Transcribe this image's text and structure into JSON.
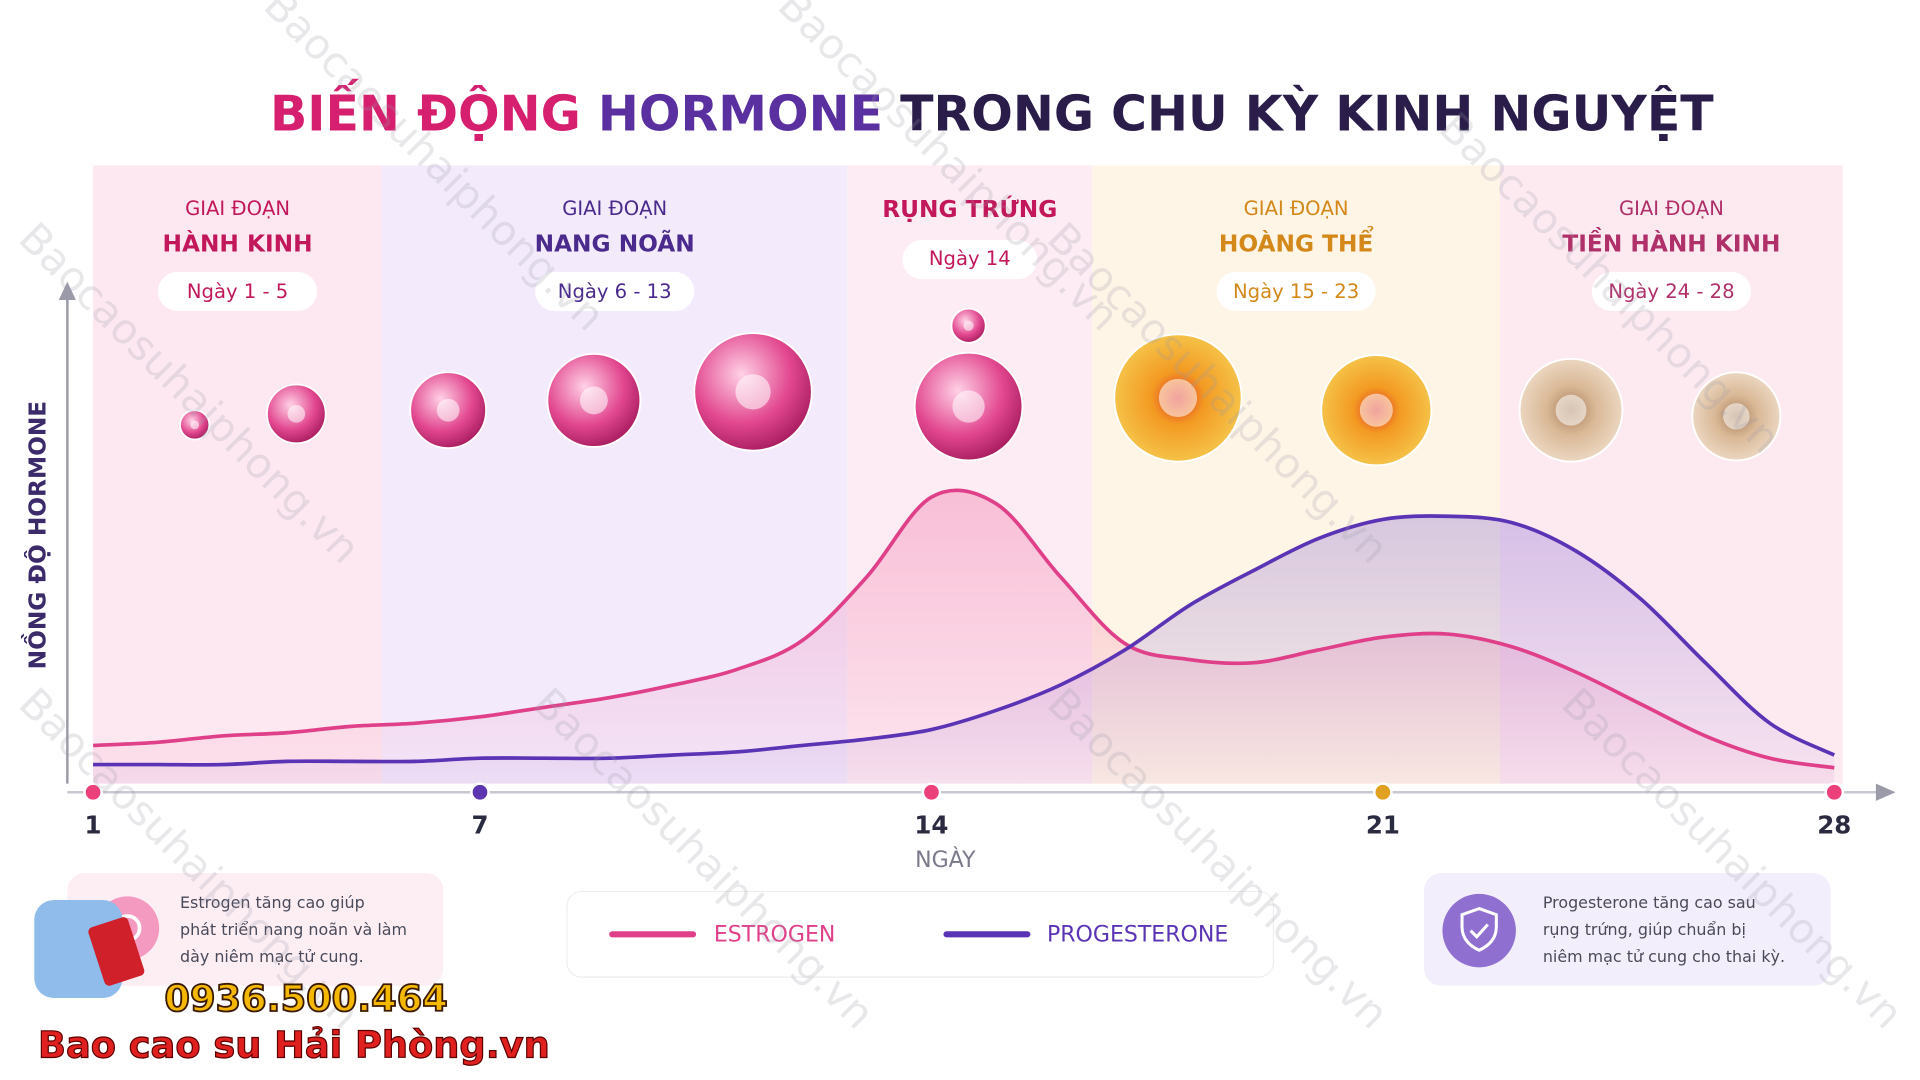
{
  "chart_data": {
    "type": "line",
    "title_parts": [
      "BIẾN ĐỘNG",
      "HORMONE",
      "TRONG CHU KỲ KINH NGUYỆT"
    ],
    "title_colors": [
      "#d6206f",
      "#5a2fa0",
      "#2a1d4a"
    ],
    "ylabel": "NỒNG ĐỘ HORMONE",
    "xlabel": "NGÀY",
    "x": [
      1,
      2,
      3,
      4,
      5,
      6,
      7,
      8,
      9,
      10,
      11,
      12,
      13,
      14,
      15,
      16,
      17,
      18,
      19,
      20,
      21,
      22,
      23,
      24,
      25,
      26,
      27,
      28
    ],
    "xlim": [
      1,
      28
    ],
    "xticks": [
      1,
      7,
      14,
      21,
      28
    ],
    "xtick_colors": [
      "#ec407a",
      "#5e35b1",
      "#ec407a",
      "#e0a020",
      "#ec407a"
    ],
    "ylim": [
      0,
      100
    ],
    "series": [
      {
        "name": "ESTROGEN",
        "color": "#e0408a",
        "values": [
          12,
          13,
          15,
          16,
          18,
          19,
          21,
          24,
          27,
          31,
          36,
          45,
          65,
          90,
          88,
          65,
          44,
          39,
          38,
          42,
          46,
          47,
          43,
          35,
          25,
          15,
          8,
          5
        ]
      },
      {
        "name": "PROGESTERONE",
        "color": "#5b34b5",
        "values": [
          6,
          6,
          6,
          7,
          7,
          7,
          8,
          8,
          8,
          9,
          10,
          12,
          14,
          17,
          23,
          31,
          42,
          56,
          67,
          77,
          83,
          84,
          82,
          73,
          58,
          38,
          19,
          9
        ]
      }
    ],
    "phases": [
      {
        "label_top": "GIAI ĐOẠN",
        "label": "HÀNH KINH",
        "days": "Ngày 1 - 5",
        "color": "#c2185b",
        "bg": "#fde4ee"
      },
      {
        "label_top": "GIAI ĐOẠN",
        "label": "NANG NOÃN",
        "days": "Ngày 6 - 13",
        "color": "#4a2a8c",
        "bg": "#f1e8fb"
      },
      {
        "label": "RỤNG TRỨNG",
        "days": "Ngày 14",
        "color": "#c2185b",
        "bg": "#fde9f1"
      },
      {
        "label_top": "GIAI ĐOẠN",
        "label": "HOÀNG THỂ",
        "days": "Ngày 15 - 23",
        "color": "#d4881a",
        "bg": "#fff3e2"
      },
      {
        "label_top": "GIAI ĐOẠN",
        "label": "TIỀN HÀNH KINH",
        "days": "Ngày 24 - 28",
        "color": "#b0306a",
        "bg": "#fde6ef"
      }
    ],
    "notes": [
      {
        "lines": [
          "Estrogen tăng cao giúp",
          "phát triển nang noãn và làm",
          "dày niêm mạc tử cung."
        ]
      },
      {
        "lines": [
          "Progesterone tăng cao sau",
          "rụng trứng, giúp chuẩn bị",
          "niêm mạc tử cung cho thai kỳ."
        ]
      }
    ]
  },
  "branding": {
    "phone": "0936.500.464",
    "name": "Bao cao su Hải Phòng.vn",
    "watermark": "Baocaosuhaiphong.vn"
  }
}
